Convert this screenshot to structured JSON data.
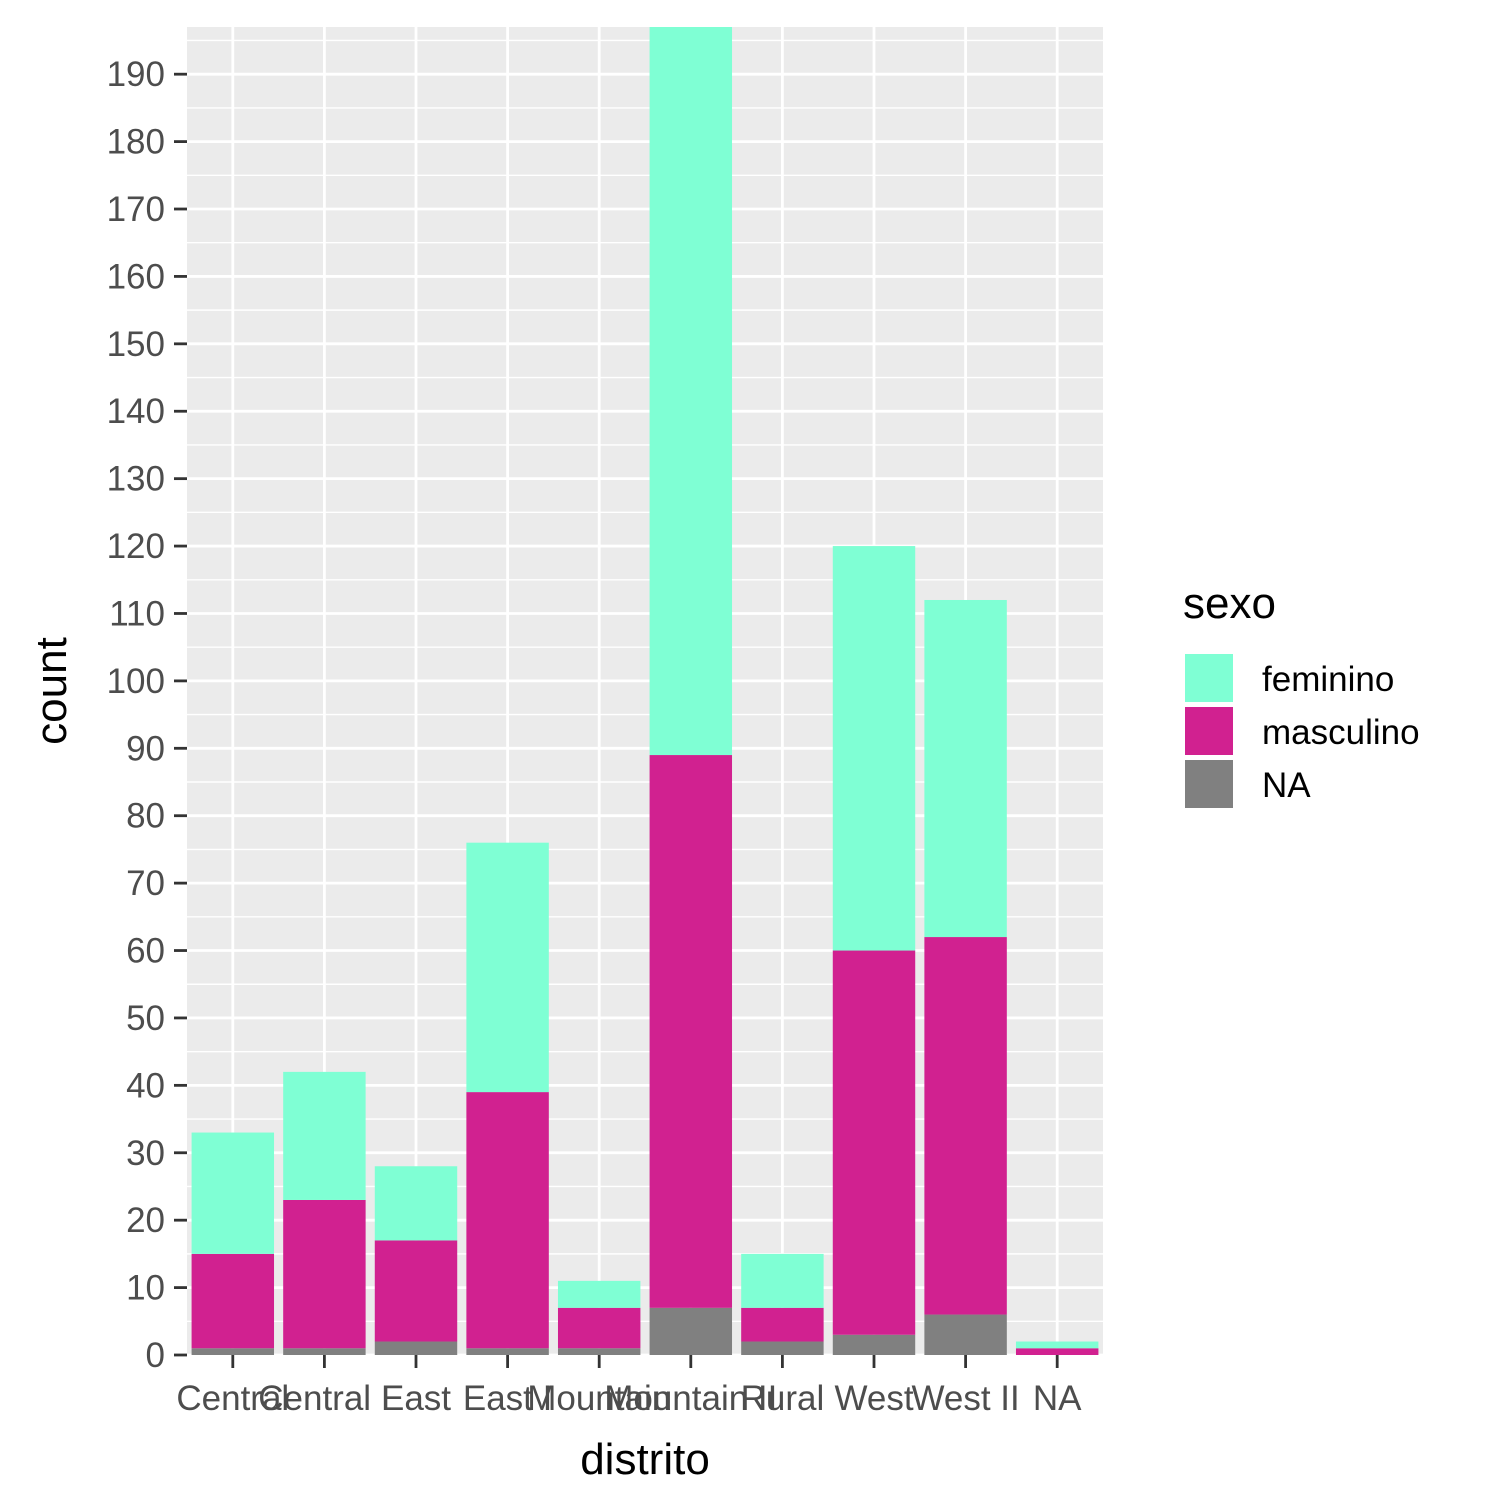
{
  "chart_data": {
    "type": "bar",
    "stacked": true,
    "xlabel": "distrito",
    "ylabel": "count",
    "ylim": [
      0,
      197
    ],
    "yticks": [
      0,
      10,
      20,
      30,
      40,
      50,
      60,
      70,
      80,
      90,
      100,
      110,
      120,
      130,
      140,
      150,
      160,
      170,
      180,
      190
    ],
    "categories": [
      "Central",
      "Central I",
      "East",
      "East I",
      "Mountain",
      "Mountain II",
      "Rural",
      "West",
      "West II",
      "NA"
    ],
    "series": [
      {
        "name": "NA",
        "color": "#808080",
        "values": [
          1,
          1,
          2,
          1,
          1,
          7,
          2,
          3,
          6,
          0
        ]
      },
      {
        "name": "masculino",
        "color": "#D12190",
        "values": [
          14,
          22,
          15,
          38,
          6,
          82,
          5,
          57,
          56,
          1
        ]
      },
      {
        "name": "feminino",
        "color": "#7FFFD4",
        "values": [
          18,
          19,
          11,
          37,
          4,
          108,
          8,
          60,
          50,
          1
        ]
      }
    ],
    "legend": {
      "title": "sexo",
      "position": "right",
      "entries": [
        "feminino",
        "masculino",
        "NA"
      ]
    },
    "grid": true,
    "panel_background": "#EBEBEB"
  }
}
